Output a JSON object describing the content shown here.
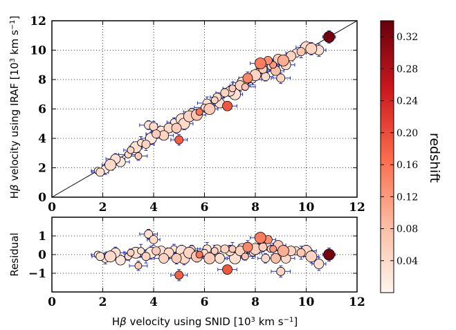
{
  "chart_data": [
    {
      "panel": "top",
      "type": "scatter",
      "xlim": [
        0,
        12
      ],
      "ylim": [
        0,
        12
      ],
      "xticks": [
        "0",
        "2",
        "4",
        "6",
        "8",
        "10",
        "12"
      ],
      "yticks": [
        "0",
        "2",
        "4",
        "6",
        "8",
        "10",
        "12"
      ],
      "ylabel_parts": [
        "H",
        "β",
        " velocity using IRAF [10",
        "3",
        " km s",
        "−1",
        "]"
      ],
      "grid": "dotted",
      "reference_line": {
        "from": [
          0,
          0
        ],
        "to": [
          12,
          12
        ]
      },
      "points": [
        {
          "x": 1.8,
          "y": 1.8,
          "z": 0.02
        },
        {
          "x": 1.9,
          "y": 1.7,
          "z": 0.03
        },
        {
          "x": 2.1,
          "y": 1.9,
          "z": 0.02
        },
        {
          "x": 2.3,
          "y": 2.2,
          "z": 0.04
        },
        {
          "x": 2.5,
          "y": 2.6,
          "z": 0.03
        },
        {
          "x": 2.7,
          "y": 2.4,
          "z": 0.02
        },
        {
          "x": 3.0,
          "y": 2.9,
          "z": 0.04
        },
        {
          "x": 3.1,
          "y": 3.2,
          "z": 0.05
        },
        {
          "x": 3.3,
          "y": 3.4,
          "z": 0.03
        },
        {
          "x": 3.4,
          "y": 2.8,
          "z": 0.06
        },
        {
          "x": 3.5,
          "y": 3.7,
          "z": 0.03
        },
        {
          "x": 3.7,
          "y": 3.6,
          "z": 0.05
        },
        {
          "x": 3.8,
          "y": 4.9,
          "z": 0.03
        },
        {
          "x": 3.9,
          "y": 4.0,
          "z": 0.02
        },
        {
          "x": 4.0,
          "y": 4.8,
          "z": 0.04
        },
        {
          "x": 4.1,
          "y": 4.3,
          "z": 0.06
        },
        {
          "x": 4.3,
          "y": 4.5,
          "z": 0.03
        },
        {
          "x": 4.4,
          "y": 4.2,
          "z": 0.05
        },
        {
          "x": 4.6,
          "y": 4.7,
          "z": 0.04
        },
        {
          "x": 4.8,
          "y": 5.1,
          "z": 0.02
        },
        {
          "x": 4.9,
          "y": 4.7,
          "z": 0.06
        },
        {
          "x": 5.0,
          "y": 3.9,
          "z": 0.18
        },
        {
          "x": 5.1,
          "y": 5.3,
          "z": 0.03
        },
        {
          "x": 5.2,
          "y": 5.0,
          "z": 0.04
        },
        {
          "x": 5.4,
          "y": 5.5,
          "z": 0.05
        },
        {
          "x": 5.5,
          "y": 5.8,
          "z": 0.03
        },
        {
          "x": 5.7,
          "y": 5.6,
          "z": 0.07
        },
        {
          "x": 5.8,
          "y": 5.8,
          "z": 0.16
        },
        {
          "x": 6.0,
          "y": 6.1,
          "z": 0.04
        },
        {
          "x": 6.1,
          "y": 6.4,
          "z": 0.03
        },
        {
          "x": 6.2,
          "y": 6.0,
          "z": 0.06
        },
        {
          "x": 6.4,
          "y": 6.6,
          "z": 0.05
        },
        {
          "x": 6.5,
          "y": 6.8,
          "z": 0.04
        },
        {
          "x": 6.6,
          "y": 6.4,
          "z": 0.03
        },
        {
          "x": 6.8,
          "y": 7.1,
          "z": 0.05
        },
        {
          "x": 6.9,
          "y": 6.2,
          "z": 0.19
        },
        {
          "x": 7.0,
          "y": 7.2,
          "z": 0.04
        },
        {
          "x": 7.1,
          "y": 7.4,
          "z": 0.06
        },
        {
          "x": 7.2,
          "y": 7.0,
          "z": 0.03
        },
        {
          "x": 7.4,
          "y": 7.6,
          "z": 0.05
        },
        {
          "x": 7.5,
          "y": 7.8,
          "z": 0.04
        },
        {
          "x": 7.6,
          "y": 7.5,
          "z": 0.07
        },
        {
          "x": 7.7,
          "y": 8.1,
          "z": 0.14
        },
        {
          "x": 7.9,
          "y": 8.0,
          "z": 0.03
        },
        {
          "x": 8.0,
          "y": 8.3,
          "z": 0.05
        },
        {
          "x": 8.1,
          "y": 8.5,
          "z": 0.04
        },
        {
          "x": 8.2,
          "y": 9.1,
          "z": 0.15
        },
        {
          "x": 8.3,
          "y": 8.7,
          "z": 0.06
        },
        {
          "x": 8.4,
          "y": 8.2,
          "z": 0.04
        },
        {
          "x": 8.5,
          "y": 9.3,
          "z": 0.13
        },
        {
          "x": 8.6,
          "y": 8.9,
          "z": 0.05
        },
        {
          "x": 8.7,
          "y": 9.0,
          "z": 0.12
        },
        {
          "x": 8.8,
          "y": 8.6,
          "z": 0.08
        },
        {
          "x": 8.9,
          "y": 9.4,
          "z": 0.06
        },
        {
          "x": 9.0,
          "y": 8.1,
          "z": 0.05
        },
        {
          "x": 9.1,
          "y": 9.3,
          "z": 0.1
        },
        {
          "x": 9.2,
          "y": 9.0,
          "z": 0.04
        },
        {
          "x": 9.4,
          "y": 9.6,
          "z": 0.05
        },
        {
          "x": 9.6,
          "y": 9.8,
          "z": 0.03
        },
        {
          "x": 9.8,
          "y": 9.9,
          "z": 0.07
        },
        {
          "x": 10.0,
          "y": 10.2,
          "z": 0.04
        },
        {
          "x": 10.2,
          "y": 10.1,
          "z": 0.05
        },
        {
          "x": 10.5,
          "y": 10.0,
          "z": 0.03
        },
        {
          "x": 10.9,
          "y": 10.9,
          "z": 0.33
        }
      ]
    },
    {
      "panel": "bottom",
      "type": "scatter",
      "xlim": [
        0,
        12
      ],
      "ylim": [
        -2,
        2
      ],
      "xticks": [
        "0",
        "2",
        "4",
        "6",
        "8",
        "10",
        "12"
      ],
      "yticks": [
        "−1",
        "0",
        "1"
      ],
      "xlabel_parts": [
        "H",
        "β",
        " velocity using SNID [10",
        "3",
        " km s",
        "−1",
        "]"
      ],
      "ylabel": "Residual",
      "grid": "dotted",
      "points": [
        {
          "x": 1.8,
          "y": 0.0,
          "z": 0.02
        },
        {
          "x": 1.9,
          "y": -0.1,
          "z": 0.03
        },
        {
          "x": 2.1,
          "y": -0.2,
          "z": 0.02
        },
        {
          "x": 2.3,
          "y": -0.1,
          "z": 0.04
        },
        {
          "x": 2.5,
          "y": 0.1,
          "z": 0.03
        },
        {
          "x": 2.7,
          "y": -0.3,
          "z": 0.02
        },
        {
          "x": 3.0,
          "y": -0.1,
          "z": 0.04
        },
        {
          "x": 3.1,
          "y": 0.1,
          "z": 0.05
        },
        {
          "x": 3.3,
          "y": 0.1,
          "z": 0.03
        },
        {
          "x": 3.4,
          "y": -0.6,
          "z": 0.06
        },
        {
          "x": 3.5,
          "y": 0.2,
          "z": 0.03
        },
        {
          "x": 3.7,
          "y": -0.1,
          "z": 0.05
        },
        {
          "x": 3.8,
          "y": 1.1,
          "z": 0.03
        },
        {
          "x": 3.9,
          "y": 0.1,
          "z": 0.02
        },
        {
          "x": 4.0,
          "y": 0.8,
          "z": 0.04
        },
        {
          "x": 4.1,
          "y": 0.2,
          "z": 0.06
        },
        {
          "x": 4.3,
          "y": 0.2,
          "z": 0.03
        },
        {
          "x": 4.4,
          "y": -0.2,
          "z": 0.05
        },
        {
          "x": 4.6,
          "y": 0.1,
          "z": 0.04
        },
        {
          "x": 4.8,
          "y": 0.3,
          "z": 0.02
        },
        {
          "x": 4.9,
          "y": -0.2,
          "z": 0.06
        },
        {
          "x": 5.0,
          "y": -1.1,
          "z": 0.18
        },
        {
          "x": 5.1,
          "y": 0.2,
          "z": 0.03
        },
        {
          "x": 5.2,
          "y": -0.2,
          "z": 0.04
        },
        {
          "x": 5.4,
          "y": 0.1,
          "z": 0.05
        },
        {
          "x": 5.5,
          "y": 0.3,
          "z": 0.03
        },
        {
          "x": 5.7,
          "y": -0.1,
          "z": 0.07
        },
        {
          "x": 5.8,
          "y": 0.0,
          "z": 0.16
        },
        {
          "x": 6.0,
          "y": 0.1,
          "z": 0.04
        },
        {
          "x": 6.1,
          "y": 0.3,
          "z": 0.03
        },
        {
          "x": 6.2,
          "y": -0.2,
          "z": 0.06
        },
        {
          "x": 6.4,
          "y": 0.2,
          "z": 0.05
        },
        {
          "x": 6.5,
          "y": 0.3,
          "z": 0.04
        },
        {
          "x": 6.6,
          "y": -0.2,
          "z": 0.03
        },
        {
          "x": 6.8,
          "y": 0.3,
          "z": 0.05
        },
        {
          "x": 6.9,
          "y": -0.8,
          "z": 0.19
        },
        {
          "x": 7.0,
          "y": 0.2,
          "z": 0.04
        },
        {
          "x": 7.1,
          "y": 0.3,
          "z": 0.06
        },
        {
          "x": 7.2,
          "y": -0.2,
          "z": 0.03
        },
        {
          "x": 7.4,
          "y": 0.2,
          "z": 0.05
        },
        {
          "x": 7.5,
          "y": 0.3,
          "z": 0.04
        },
        {
          "x": 7.6,
          "y": -0.1,
          "z": 0.07
        },
        {
          "x": 7.7,
          "y": 0.4,
          "z": 0.14
        },
        {
          "x": 7.9,
          "y": 0.1,
          "z": 0.03
        },
        {
          "x": 8.0,
          "y": 0.3,
          "z": 0.05
        },
        {
          "x": 8.1,
          "y": 0.4,
          "z": 0.04
        },
        {
          "x": 8.2,
          "y": 0.9,
          "z": 0.15
        },
        {
          "x": 8.3,
          "y": 0.4,
          "z": 0.06
        },
        {
          "x": 8.4,
          "y": -0.2,
          "z": 0.04
        },
        {
          "x": 8.5,
          "y": 0.8,
          "z": 0.13
        },
        {
          "x": 8.6,
          "y": 0.3,
          "z": 0.05
        },
        {
          "x": 8.7,
          "y": 0.3,
          "z": 0.12
        },
        {
          "x": 8.8,
          "y": -0.2,
          "z": 0.08
        },
        {
          "x": 8.9,
          "y": 0.5,
          "z": 0.06
        },
        {
          "x": 9.0,
          "y": -0.9,
          "z": 0.05
        },
        {
          "x": 9.1,
          "y": 0.2,
          "z": 0.1
        },
        {
          "x": 9.2,
          "y": -0.2,
          "z": 0.04
        },
        {
          "x": 9.4,
          "y": 0.2,
          "z": 0.05
        },
        {
          "x": 9.6,
          "y": 0.2,
          "z": 0.03
        },
        {
          "x": 9.8,
          "y": 0.1,
          "z": 0.07
        },
        {
          "x": 10.0,
          "y": 0.2,
          "z": 0.04
        },
        {
          "x": 10.2,
          "y": -0.1,
          "z": 0.05
        },
        {
          "x": 10.5,
          "y": -0.5,
          "z": 0.03
        },
        {
          "x": 10.9,
          "y": 0.0,
          "z": 0.33
        }
      ]
    }
  ],
  "colorbar": {
    "label": "redshift",
    "range": [
      0.0,
      0.34
    ],
    "ticks": [
      {
        "value": 0.04,
        "label": "0.04"
      },
      {
        "value": 0.08,
        "label": "0.08"
      },
      {
        "value": 0.12,
        "label": "0.12"
      },
      {
        "value": 0.16,
        "label": "0.16"
      },
      {
        "value": 0.2,
        "label": "0.20"
      },
      {
        "value": 0.24,
        "label": "0.24"
      },
      {
        "value": 0.28,
        "label": "0.28"
      },
      {
        "value": 0.32,
        "label": "0.32"
      }
    ],
    "colormap": "Reds",
    "low_color": "#fff5ee",
    "high_color": "#67000d"
  },
  "colors": {
    "errorbar": "#1f2bd8",
    "marker_edge": "#000000",
    "grid": "#000000"
  }
}
